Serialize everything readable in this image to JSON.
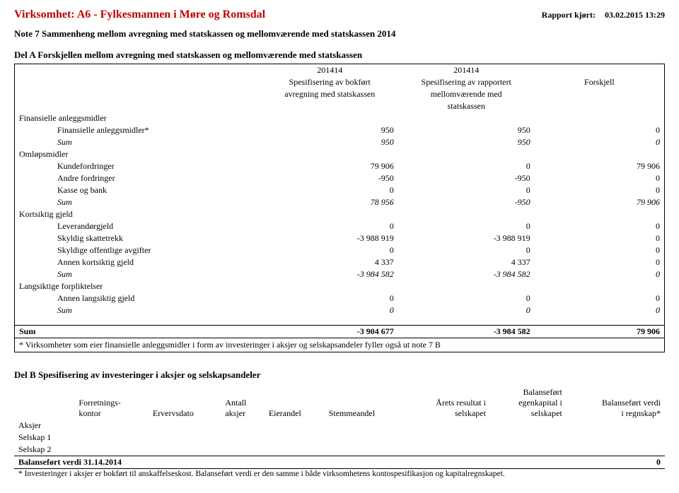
{
  "header": {
    "title": "Virksomhet: A6 - Fylkesmannen i Møre og Romsdal",
    "report_label": "Rapport kjørt:",
    "report_value": "03.02.2015 13:29"
  },
  "note_title": "Note 7 Sammenheng mellom avregning med statskassen og mellomværende med statskassen 2014",
  "del_a": {
    "title": "Del A Forskjellen mellom avregning med statskassen og mellomværende med statskassen",
    "period1": "201414",
    "period2": "201414",
    "spec1a": "Spesifisering av bokført",
    "spec1b": "avregning med statskassen",
    "spec2a": "Spesifisering av rapportert",
    "spec2b": "mellomværende med",
    "spec2c": "statskassen",
    "diff_label": "Forskjell",
    "groups": [
      {
        "name": "Finansielle anleggsmidler",
        "rows": [
          {
            "label": "Finansielle anleggsmidler*",
            "v1": "950",
            "v2": "950",
            "v3": "0"
          }
        ],
        "sum": {
          "label": "Sum",
          "v1": "950",
          "v2": "950",
          "v3": "0"
        }
      },
      {
        "name": "Omløpsmidler",
        "rows": [
          {
            "label": "Kundefordringer",
            "v1": "79 906",
            "v2": "0",
            "v3": "79 906"
          },
          {
            "label": "Andre fordringer",
            "v1": "-950",
            "v2": "-950",
            "v3": "0"
          },
          {
            "label": "Kasse og bank",
            "v1": "0",
            "v2": "0",
            "v3": "0"
          }
        ],
        "sum": {
          "label": "Sum",
          "v1": "78 956",
          "v2": "-950",
          "v3": "79 906"
        }
      },
      {
        "name": "Kortsiktig gjeld",
        "rows": [
          {
            "label": "Leverandørgjeld",
            "v1": "0",
            "v2": "0",
            "v3": "0"
          },
          {
            "label": "Skyldig skattetrekk",
            "v1": "-3 988 919",
            "v2": "-3 988 919",
            "v3": "0"
          },
          {
            "label": "Skyldige offentlige avgifter",
            "v1": "0",
            "v2": "0",
            "v3": "0"
          },
          {
            "label": "Annen kortsiktig gjeld",
            "v1": "4 337",
            "v2": "4 337",
            "v3": "0"
          }
        ],
        "sum": {
          "label": "Sum",
          "v1": "-3 984 582",
          "v2": "-3 984 582",
          "v3": "0"
        }
      },
      {
        "name": "Langsiktige forpliktelser",
        "rows": [
          {
            "label": "Annen langsiktig gjeld",
            "v1": "0",
            "v2": "0",
            "v3": "0"
          }
        ],
        "sum": {
          "label": "Sum",
          "v1": "0",
          "v2": "0",
          "v3": "0"
        }
      }
    ],
    "grand": {
      "label": "Sum",
      "v1": "-3 904 677",
      "v2": "-3 984 582",
      "v3": "79 906"
    },
    "footnote": "* Virksomheter som eier finansielle anleggsmidler i form av investeringer i aksjer og selskapsandeler fyller også ut note 7 B"
  },
  "del_b": {
    "title": "Del B Spesifisering av investeringer i aksjer og selskapsandeler",
    "columns": [
      "",
      "Forretnings-\nkontor",
      "Ervervsdato",
      "Antall\naksjer",
      "Eierandel",
      "Stemmeandel",
      "Årets resultat i\nselskapet",
      "Balanseført\negenkapital i\nselskapet",
      "Balanseført verdi\ni regnskap*"
    ],
    "row_labels": [
      "Aksjer",
      "Selskap 1",
      "Selskap 2"
    ],
    "balance_row": {
      "label": "Balanseført verdi 31.14.2014",
      "value": "0"
    },
    "footnote": "* Investeringer i aksjer er bokført til anskaffelseskost. Balanseført verdi er den samme i både virksomhetens kontospesifikasjon og kapitalregnskapet."
  }
}
